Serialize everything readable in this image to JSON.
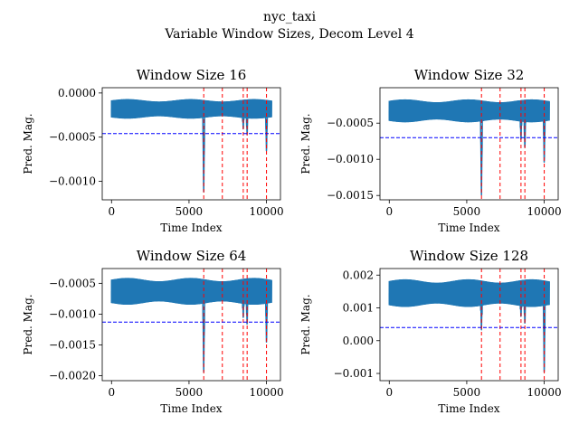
{
  "figure": {
    "suptitle_line1": "nyc_taxi",
    "suptitle_line2": "Variable Window Sizes, Decom Level 4"
  },
  "colors": {
    "series": "#1f77b4",
    "threshold": "#0000ff",
    "anomaly": "#ff0000",
    "axes": "#000000"
  },
  "chart_data": [
    {
      "type": "line",
      "title": "Window Size 16",
      "xlabel": "Time Index",
      "ylabel": "Pred. Mag.",
      "xlim": [
        -600,
        10900
      ],
      "ylim": [
        -0.00121,
        6e-05
      ],
      "xticks": [
        0,
        5000,
        10000
      ],
      "xtick_labels": [
        "0",
        "5000",
        "10000"
      ],
      "yticks": [
        0.0,
        -0.0005,
        -0.001
      ],
      "ytick_labels": [
        "0.0000",
        "−0.0005",
        "−0.0010"
      ],
      "threshold": -0.00046,
      "anomaly_x": [
        5950,
        7150,
        8500,
        8750,
        10000
      ],
      "signal": {
        "n": 10321,
        "base": -0.00018,
        "amp": 9e-05,
        "dips": [
          [
            5950,
            -0.00115
          ],
          [
            8750,
            -0.00048
          ],
          [
            8500,
            -0.00042
          ],
          [
            10000,
            -0.00068
          ]
        ]
      }
    },
    {
      "type": "line",
      "title": "Window Size 32",
      "xlabel": "Time Index",
      "ylabel": "Pred. Mag.",
      "xlim": [
        -600,
        10900
      ],
      "ylim": [
        -0.00156,
        -1e-05
      ],
      "xticks": [
        0,
        5000,
        10000
      ],
      "xtick_labels": [
        "0",
        "5000",
        "10000"
      ],
      "yticks": [
        -0.0005,
        -0.001,
        -0.0015
      ],
      "ytick_labels": [
        "−0.0005",
        "−0.0010",
        "−0.0015"
      ],
      "threshold": -0.0007,
      "anomaly_x": [
        5950,
        7150,
        8500,
        8750,
        10000
      ],
      "signal": {
        "n": 10321,
        "base": -0.00033,
        "amp": 0.00013,
        "dips": [
          [
            5950,
            -0.00153
          ],
          [
            8750,
            -0.00085
          ],
          [
            8500,
            -0.00075
          ],
          [
            10000,
            -0.00108
          ]
        ]
      }
    },
    {
      "type": "line",
      "title": "Window Size 64",
      "xlabel": "Time Index",
      "ylabel": "Pred. Mag.",
      "xlim": [
        -600,
        10900
      ],
      "ylim": [
        -0.00208,
        -0.00026
      ],
      "xticks": [
        0,
        5000,
        10000
      ],
      "xtick_labels": [
        "0",
        "5000",
        "10000"
      ],
      "yticks": [
        -0.0005,
        -0.001,
        -0.0015,
        -0.002
      ],
      "ytick_labels": [
        "−0.0005",
        "−0.0010",
        "−0.0015",
        "−0.0020"
      ],
      "threshold": -0.00113,
      "anomaly_x": [
        5950,
        7150,
        8500,
        8750,
        10000
      ],
      "signal": {
        "n": 10321,
        "base": -0.00063,
        "amp": 0.00018,
        "dips": [
          [
            5950,
            -0.00198
          ],
          [
            8750,
            -0.00118
          ],
          [
            8500,
            -0.00108
          ],
          [
            10000,
            -0.0015
          ]
        ]
      }
    },
    {
      "type": "line",
      "title": "Window Size 128",
      "xlabel": "Time Index",
      "ylabel": "Pred. Mag.",
      "xlim": [
        -600,
        10900
      ],
      "ylim": [
        -0.00122,
        0.0022
      ],
      "xticks": [
        0,
        5000,
        10000
      ],
      "xtick_labels": [
        "0",
        "5000",
        "10000"
      ],
      "yticks": [
        0.002,
        0.001,
        0.0,
        -0.001
      ],
      "ytick_labels": [
        "0.002",
        "0.001",
        "0.000",
        "−0.001"
      ],
      "threshold": 0.0004,
      "anomaly_x": [
        5950,
        7150,
        8500,
        8750,
        10000
      ],
      "signal": {
        "n": 10321,
        "base": 0.00145,
        "amp": 0.00035,
        "dips": [
          [
            5950,
            0.0003
          ],
          [
            8750,
            0.0005
          ],
          [
            8500,
            0.0007
          ],
          [
            10000,
            -0.0011
          ]
        ]
      }
    }
  ]
}
